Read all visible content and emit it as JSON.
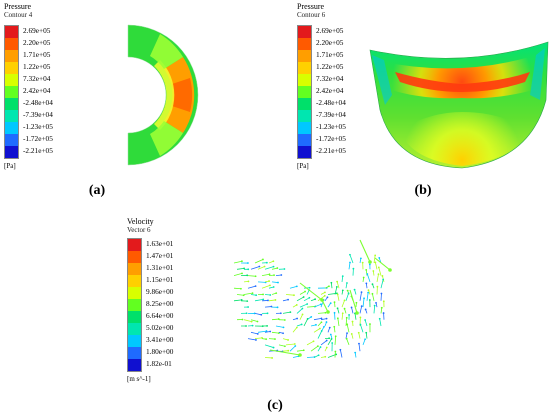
{
  "legends": {
    "a": {
      "title": "Pressure",
      "subtitle": "Contour 4",
      "unit": "[Pa]",
      "ticks": [
        "2.69e+05",
        "2.20e+05",
        "1.71e+05",
        "1.22e+05",
        "7.32e+04",
        "2.42e+04",
        "-2.48e+04",
        "-7.39e+04",
        "-1.23e+05",
        "-1.72e+05",
        "-2.21e+05"
      ]
    },
    "b": {
      "title": "Pressure",
      "subtitle": "Contour 6",
      "unit": "[Pa]",
      "ticks": [
        "2.69e+05",
        "2.20e+05",
        "1.71e+05",
        "1.22e+05",
        "7.32e+04",
        "2.42e+04",
        "-2.48e+04",
        "-7.39e+04",
        "-1.23e+05",
        "-1.72e+05",
        "-2.21e+05"
      ]
    },
    "c": {
      "title": "Velocity",
      "subtitle": "Vector 6",
      "unit": "[m s^-1]",
      "ticks": [
        "1.63e+01",
        "1.47e+01",
        "1.31e+01",
        "1.15e+01",
        "9.86e+00",
        "8.25e+00",
        "6.64e+00",
        "5.02e+00",
        "3.41e+00",
        "1.80e+00",
        "1.82e-01"
      ]
    }
  },
  "panel_labels": {
    "a": "(a)",
    "b": "(b)",
    "c": "(c)"
  },
  "colormap": [
    "#e31a1c",
    "#ff5a00",
    "#ff9e00",
    "#ffd000",
    "#d8ff00",
    "#62ff20",
    "#00e06a",
    "#00e6b0",
    "#00c8ff",
    "#1f6bff",
    "#1010d0"
  ]
}
